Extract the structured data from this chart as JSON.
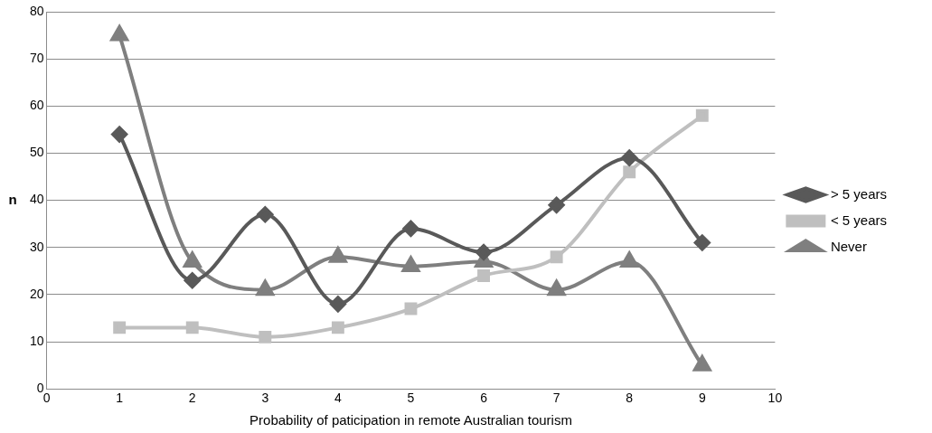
{
  "chart_data": {
    "type": "line",
    "xlabel": "Probability of paticipation in remote Australian tourism",
    "ylabel": "n",
    "x": [
      1,
      2,
      3,
      4,
      5,
      6,
      7,
      8,
      9
    ],
    "series": [
      {
        "name": "> 5 years",
        "color": "#595959",
        "marker": "diamond",
        "values": [
          54,
          23,
          37,
          18,
          34,
          29,
          39,
          49,
          31
        ]
      },
      {
        "name": "< 5 years",
        "color": "#bfbfbf",
        "marker": "square",
        "values": [
          13,
          13,
          11,
          13,
          17,
          24,
          28,
          46,
          58
        ]
      },
      {
        "name": "Never",
        "color": "#7f7f7f",
        "marker": "triangle",
        "values": [
          75,
          27,
          21,
          28,
          26,
          27,
          21,
          27,
          5
        ]
      }
    ],
    "xlim": [
      0,
      10
    ],
    "xticks": [
      0,
      1,
      2,
      3,
      4,
      5,
      6,
      7,
      8,
      9,
      10
    ],
    "ylim": [
      0,
      80
    ],
    "yticks": [
      0,
      10,
      20,
      30,
      40,
      50,
      60,
      70,
      80
    ],
    "grid": "y",
    "legend": "right",
    "line_style": "solid"
  }
}
